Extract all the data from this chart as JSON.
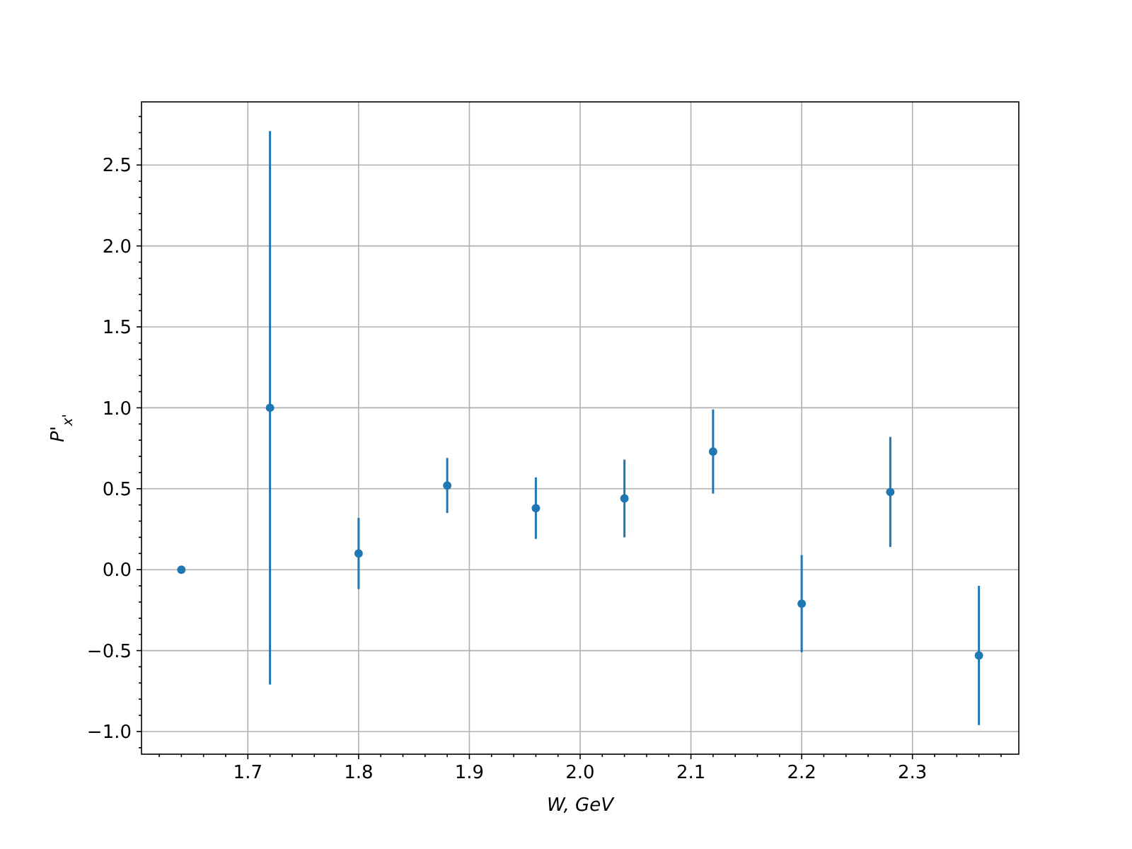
{
  "chart_data": {
    "type": "scatter",
    "xlabel": "W, GeV",
    "ylabel": "P'$_{x'}$",
    "x": [
      1.64,
      1.72,
      1.8,
      1.88,
      1.96,
      2.04,
      2.12,
      2.2,
      2.28,
      2.36
    ],
    "series": [
      {
        "color": "#1f77b4",
        "values": [
          0,
          1.0,
          0.1,
          0.52,
          0.38,
          0.44,
          0.73,
          -0.21,
          0.48,
          -0.53
        ],
        "errors": [
          null,
          1.71,
          0.22,
          0.17,
          0.19,
          0.24,
          0.26,
          0.3,
          0.34,
          0.43
        ]
      }
    ],
    "xlim": [
      1.604,
      2.396
    ],
    "xticks": [
      {
        "value": 1.62,
        "label": null
      },
      {
        "value": 1.64,
        "label": null
      },
      {
        "value": 1.66,
        "label": null
      },
      {
        "value": 1.68,
        "label": null
      },
      1.7,
      {
        "value": 1.72,
        "label": null
      },
      {
        "value": 1.74,
        "label": null
      },
      {
        "value": 1.76,
        "label": null
      },
      {
        "value": 1.78,
        "label": null
      },
      1.8,
      {
        "value": 1.82,
        "label": null
      },
      {
        "value": 1.84,
        "label": null
      },
      {
        "value": 1.86,
        "label": null
      },
      {
        "value": 1.88,
        "label": null
      },
      1.9,
      {
        "value": 1.92,
        "label": null
      },
      {
        "value": 1.94,
        "label": null
      },
      {
        "value": 1.96,
        "label": null
      },
      {
        "value": 1.98,
        "label": null
      },
      {
        "value": 2.0,
        "label": "2.0"
      },
      {
        "value": 2.02,
        "label": null
      },
      {
        "value": 2.04,
        "label": null
      },
      {
        "value": 2.06,
        "label": null
      },
      {
        "value": 2.08,
        "label": null
      },
      2.1,
      {
        "value": 2.12,
        "label": null
      },
      {
        "value": 2.14,
        "label": null
      },
      {
        "value": 2.16,
        "label": null
      },
      {
        "value": 2.18,
        "label": null
      },
      2.2,
      {
        "value": 2.22,
        "label": null
      },
      {
        "value": 2.24,
        "label": null
      },
      {
        "value": 2.26,
        "label": null
      },
      {
        "value": 2.28,
        "label": null
      },
      2.3,
      {
        "value": 2.32,
        "label": null
      },
      {
        "value": 2.34,
        "label": null
      },
      {
        "value": 2.36,
        "label": null
      },
      {
        "value": 2.38,
        "label": null
      }
    ],
    "ylim": [
      -1.14,
      2.89
    ],
    "yticks": [
      {
        "value": -1.1,
        "label": null
      },
      {
        "value": -1.0,
        "label": "−1.0"
      },
      {
        "value": -0.9,
        "label": null
      },
      {
        "value": -0.8,
        "label": null
      },
      {
        "value": -0.7,
        "label": null
      },
      {
        "value": -0.6,
        "label": null
      },
      {
        "value": -0.5,
        "label": "−0.5"
      },
      {
        "value": -0.4,
        "label": null
      },
      {
        "value": -0.3,
        "label": null
      },
      {
        "value": -0.2,
        "label": null
      },
      {
        "value": -0.1,
        "label": null
      },
      {
        "value": 0,
        "label": "0.0"
      },
      {
        "value": 0.1,
        "label": null
      },
      {
        "value": 0.2,
        "label": null
      },
      {
        "value": 0.3,
        "label": null
      },
      {
        "value": 0.4,
        "label": null
      },
      0.5,
      {
        "value": 0.6,
        "label": null
      },
      {
        "value": 0.7,
        "label": null
      },
      {
        "value": 0.8,
        "label": null
      },
      {
        "value": 0.9,
        "label": null
      },
      {
        "value": 1.0,
        "label": "1.0"
      },
      {
        "value": 1.1,
        "label": null
      },
      {
        "value": 1.2,
        "label": null
      },
      {
        "value": 1.3,
        "label": null
      },
      {
        "value": 1.4,
        "label": null
      },
      1.5,
      {
        "value": 1.6,
        "label": null
      },
      {
        "value": 1.7,
        "label": null
      },
      {
        "value": 1.8,
        "label": null
      },
      {
        "value": 1.9,
        "label": null
      },
      {
        "value": 2.0,
        "label": "2.0"
      },
      {
        "value": 2.1,
        "label": null
      },
      {
        "value": 2.2,
        "label": null
      },
      {
        "value": 2.3,
        "label": null
      },
      {
        "value": 2.4,
        "label": null
      },
      2.5,
      {
        "value": 2.6,
        "label": null
      },
      {
        "value": 2.7,
        "label": null
      },
      {
        "value": 2.8,
        "label": null
      }
    ],
    "grid": true,
    "marker": "circle"
  }
}
